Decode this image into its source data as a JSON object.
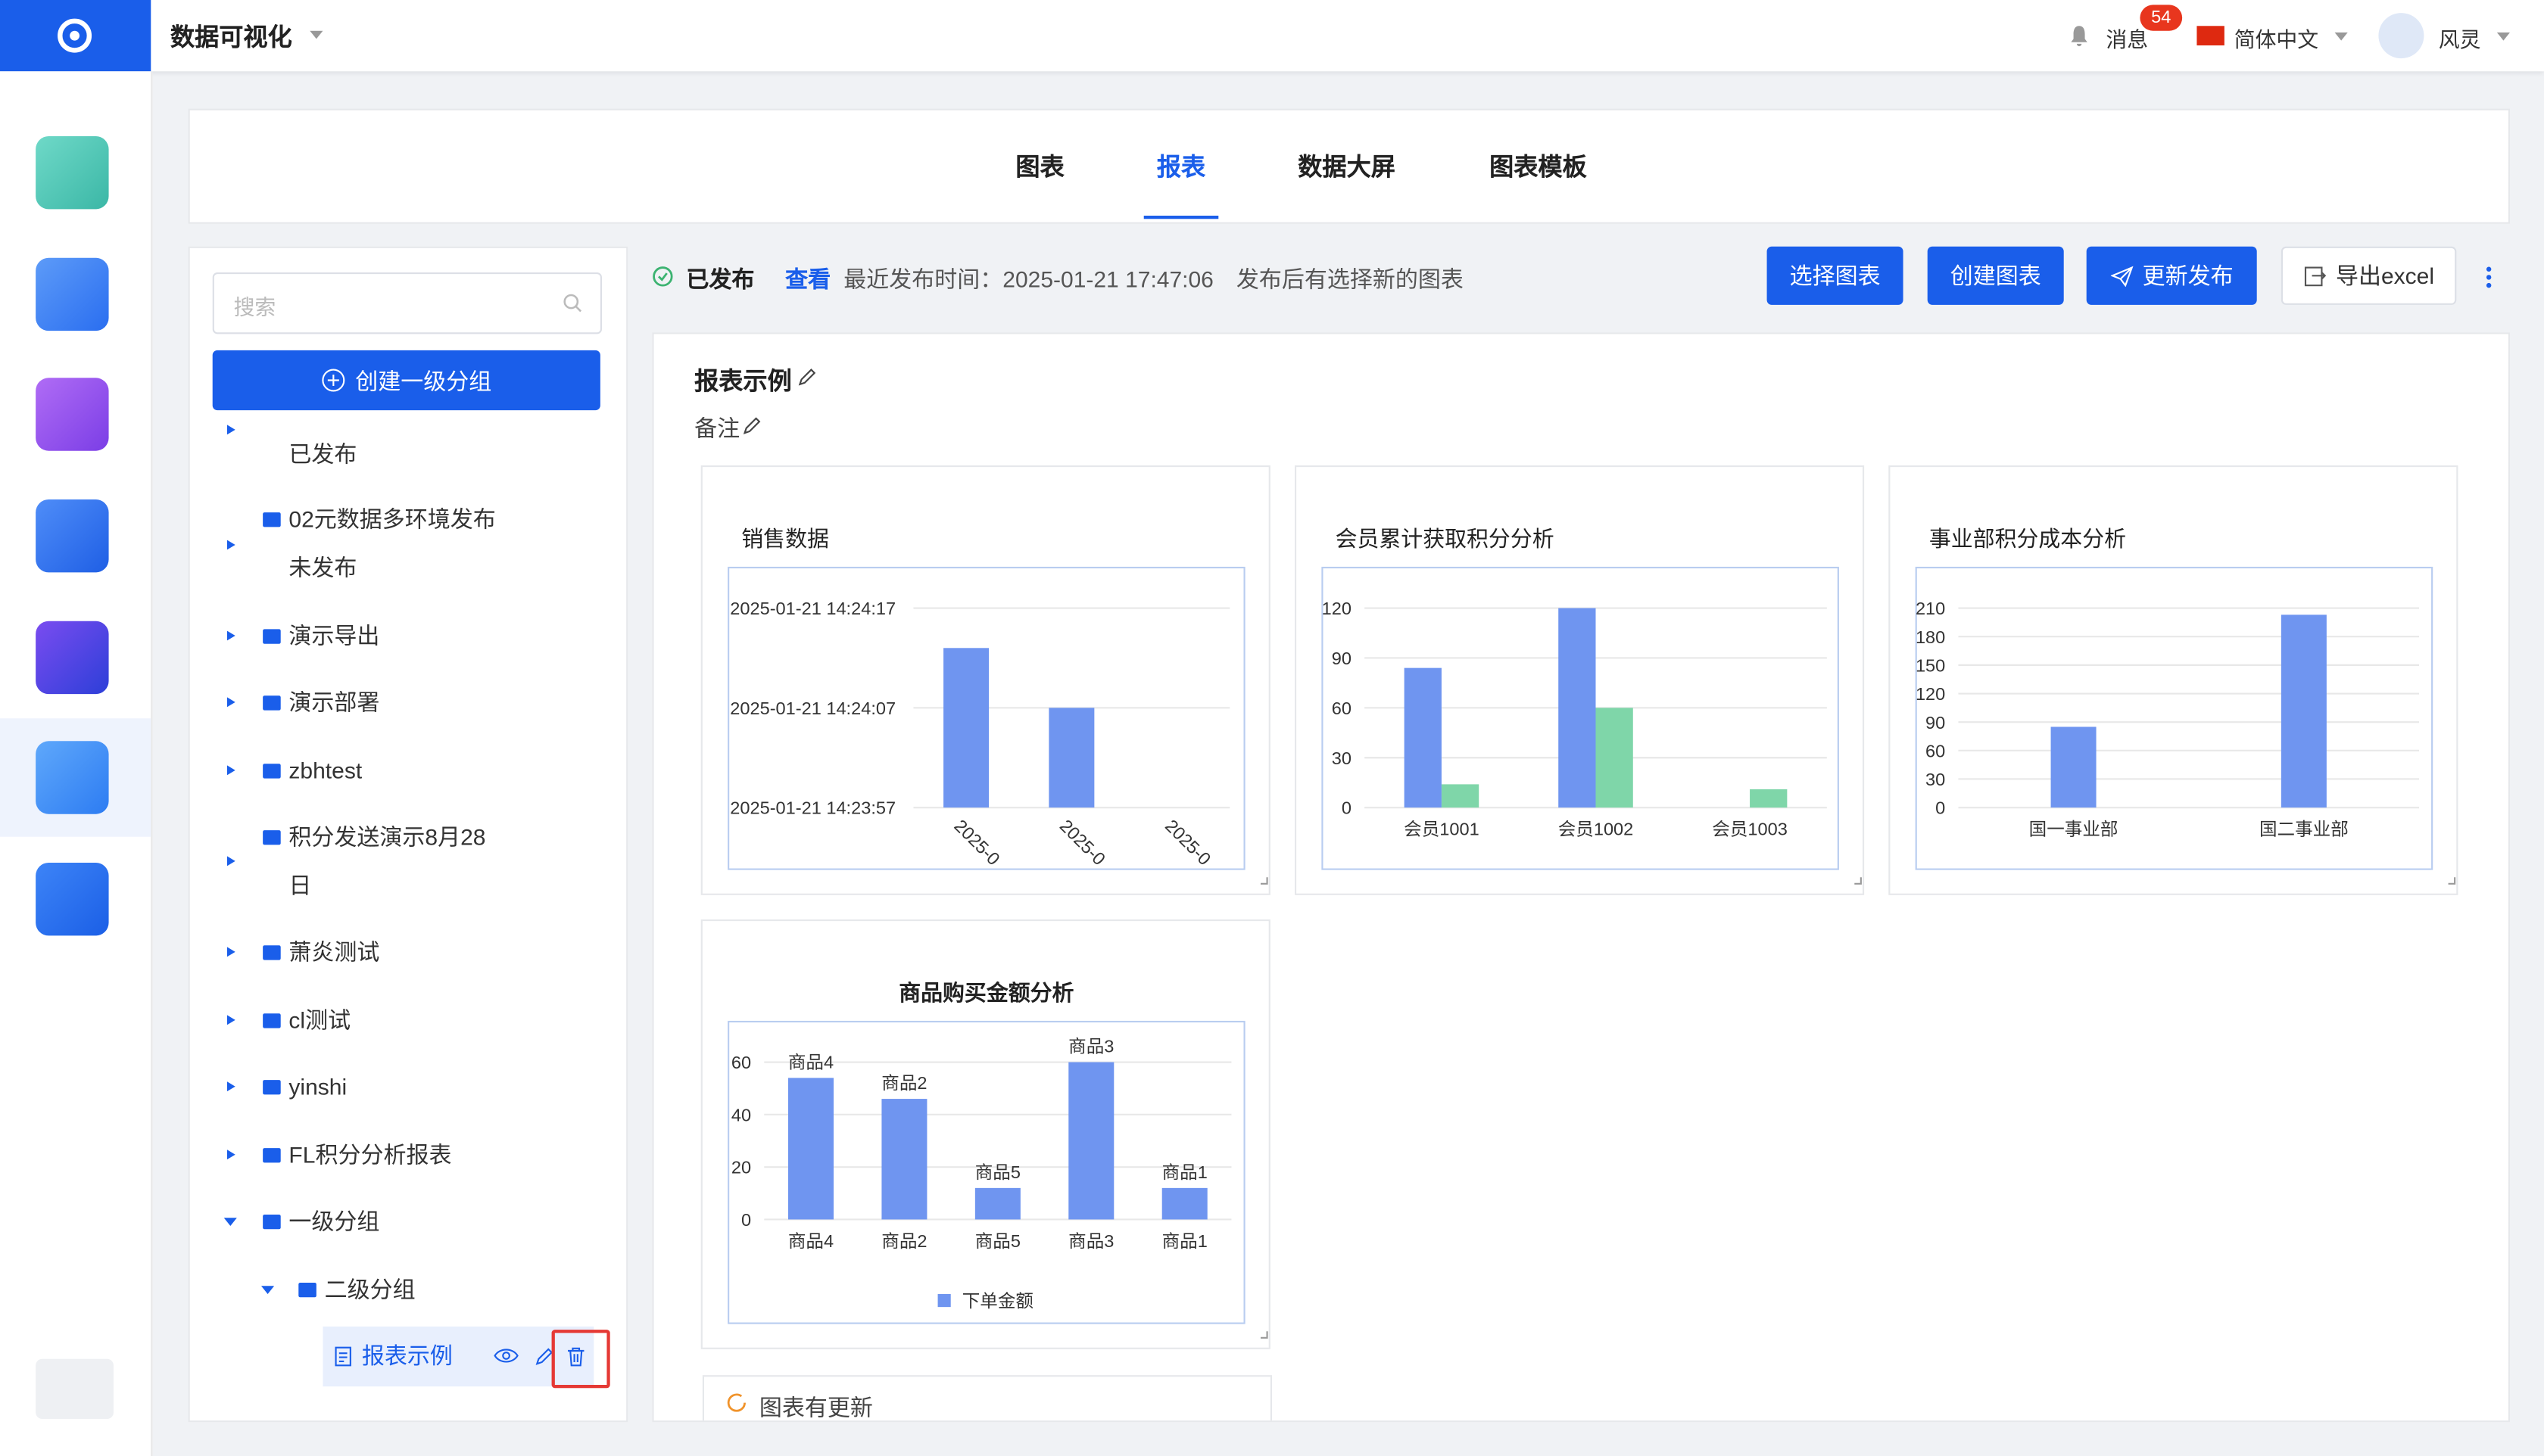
{
  "header": {
    "app_title": "数据可视化",
    "messages": "消息",
    "badge": "54",
    "language": "简体中文",
    "user": "风灵"
  },
  "tabs": [
    "图表",
    "报表",
    "数据大屏",
    "图表模板"
  ],
  "sidebar": {
    "search_placeholder": "搜索",
    "create_button": "创建一级分组",
    "tree": [
      "已发布",
      "02元数据多环境发布未发布",
      "演示导出",
      "演示部署",
      "zbhtest",
      "积分发送演示8月28日",
      "萧炎测试",
      "cl测试",
      "yinshi",
      "FL积分分析报表",
      "一级分组",
      "二级分组",
      "报表示例"
    ]
  },
  "toolbar": {
    "status": "已发布",
    "view": "查看",
    "publish_time": "最近发布时间：2025-01-21 17:47:06",
    "note": "发布后有选择新的图表",
    "buttons": [
      "选择图表",
      "创建图表",
      "更新发布",
      "导出excel"
    ]
  },
  "report": {
    "title": "报表示例",
    "remark": "备注",
    "notice": "图表有更新"
  },
  "chart_data": [
    {
      "type": "bar",
      "title": "销售数据",
      "categories": [
        "2025-0",
        "2025-0",
        "2025-0"
      ],
      "series": [
        {
          "color": "#6f95f0",
          "values": [
            51853,
            51847,
            null
          ]
        }
      ],
      "ylim": [
        51837,
        51857
      ],
      "yticks": [
        {
          "value": 51837,
          "label": "2025-01-21 14:23:57"
        },
        {
          "value": 51847,
          "label": "2025-01-21 14:24:07"
        },
        {
          "value": 51857,
          "label": "2025-01-21 14:24:17"
        }
      ],
      "grid": true
    },
    {
      "type": "bar",
      "title": "会员累计获取积分分析",
      "categories": [
        "会员1001",
        "会员1002",
        "会员1003"
      ],
      "series": [
        {
          "color": "#6f95f0",
          "values": [
            84,
            120,
            0
          ]
        },
        {
          "color": "#7fd6a9",
          "values": [
            14,
            60,
            11
          ]
        }
      ],
      "ylim": [
        0,
        120
      ],
      "yticks": [
        0,
        30,
        60,
        90,
        120
      ],
      "grid": true
    },
    {
      "type": "bar",
      "title": "事业部积分成本分析",
      "categories": [
        "国一事业部",
        "国二事业部"
      ],
      "series": [
        {
          "color": "#6f95f0",
          "values": [
            85,
            203
          ]
        }
      ],
      "ylim": [
        0,
        210
      ],
      "yticks": [
        0,
        30,
        60,
        90,
        120,
        150,
        180,
        210
      ],
      "grid": true
    },
    {
      "type": "bar",
      "title": "商品购买金额分析",
      "categories": [
        "商品4",
        "商品2",
        "商品5",
        "商品3",
        "商品1"
      ],
      "series": [
        {
          "name": "下单金额",
          "color": "#6f95f0",
          "values": [
            54,
            46,
            12,
            60,
            12
          ]
        }
      ],
      "ylim": [
        0,
        60
      ],
      "yticks": [
        0,
        20,
        40,
        60
      ],
      "grid": true
    }
  ]
}
